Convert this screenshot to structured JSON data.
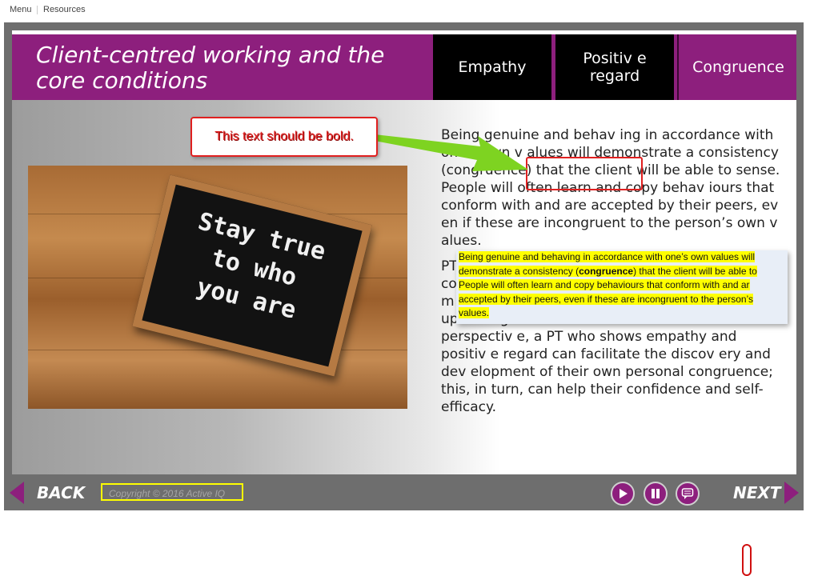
{
  "topmenu": {
    "menu_label": "Menu",
    "resources_label": "Resources"
  },
  "slide": {
    "title": "Client-centred working and the core conditions",
    "tabs": [
      {
        "label": "Empathy",
        "state": "default"
      },
      {
        "label": "Positiv e regard",
        "state": "default"
      },
      {
        "label": "Congruence",
        "state": "active"
      }
    ],
    "image_text": [
      "Stay true",
      "to who",
      "you are"
    ],
    "paragraph1": "Being genuine and behav ing in accordance with one’s own v alues will demonstrate a consistency (congruence) that the client will be able to sense. People will often learn and copy behav iours that conform with and are accepted by their peers, ev en if these are incongruent to the person’s own v alues.",
    "paragraph2_visible_start": "PT",
    "paragraph2_lines_hidden": [
      "co",
      "m"
    ],
    "paragraph2_rest": "upholding their own v alues. From a client’s perspectiv e, a PT who shows empathy and positiv e regard can facilitate the discov ery and dev elopment of their own personal congruence; this, in turn, can help their confidence and self-efficacy."
  },
  "annotation": {
    "label": "This text should be bold.",
    "arrow_color": "#7ed321",
    "box_color": "#e02020"
  },
  "word_popup": {
    "line1": "Being genuine and behaving in accordance with one’s own values will",
    "line2_prefix": "demonstrate a consistency (",
    "line2_bold": "congruence",
    "line2_suffix": ") that the client will be able to",
    "line3": "People will often learn and copy behaviours that conform with and ar",
    "line4": "accepted by their peers, even if these are incongruent to the person’s",
    "line5": "values."
  },
  "navbar": {
    "back_label": "BACK",
    "next_label": "NEXT",
    "copyright": "Copyright © 2016 Active IQ",
    "controls": [
      "play-icon",
      "pause-icon",
      "comment-icon"
    ]
  },
  "colors": {
    "brand": "#8d1f7d",
    "tab_black": "#000000",
    "highlight": "#ffff00",
    "annotation": "#e02020"
  }
}
